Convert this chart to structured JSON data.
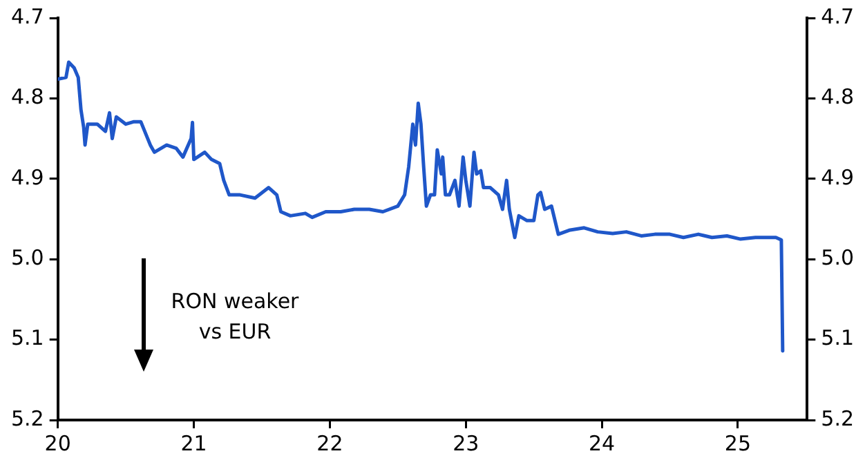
{
  "chart_data": {
    "type": "line",
    "x": [
      20.0,
      20.06,
      20.08,
      20.12,
      20.15,
      20.17,
      20.19,
      20.2,
      20.22,
      20.29,
      20.35,
      20.38,
      20.4,
      20.43,
      20.5,
      20.56,
      20.61,
      20.68,
      20.71,
      20.8,
      20.87,
      20.92,
      20.98,
      20.99,
      21.0,
      21.08,
      21.13,
      21.19,
      21.22,
      21.26,
      21.34,
      21.45,
      21.55,
      21.61,
      21.64,
      21.71,
      21.82,
      21.87,
      21.97,
      22.08,
      22.18,
      22.29,
      22.39,
      22.5,
      22.55,
      22.58,
      22.61,
      22.63,
      22.65,
      22.67,
      22.69,
      22.71,
      22.74,
      22.77,
      22.79,
      22.82,
      22.83,
      22.85,
      22.88,
      22.92,
      22.95,
      22.98,
      23.0,
      23.03,
      23.06,
      23.08,
      23.11,
      23.13,
      23.18,
      23.24,
      23.27,
      23.3,
      23.32,
      23.36,
      23.39,
      23.45,
      23.5,
      23.53,
      23.55,
      23.58,
      23.63,
      23.68,
      23.76,
      23.87,
      23.97,
      24.08,
      24.18,
      24.29,
      24.39,
      24.5,
      24.6,
      24.71,
      24.81,
      24.92,
      25.02,
      25.13,
      25.28,
      25.32,
      25.33
    ],
    "series": [
      {
        "color": "#1f57c9",
        "values": [
          4.776,
          4.774,
          4.755,
          4.762,
          4.774,
          4.814,
          4.836,
          4.858,
          4.832,
          4.832,
          4.841,
          4.818,
          4.85,
          4.823,
          4.832,
          4.829,
          4.829,
          4.858,
          4.867,
          4.858,
          4.862,
          4.873,
          4.85,
          4.83,
          4.876,
          4.867,
          4.876,
          4.881,
          4.902,
          4.92,
          4.92,
          4.924,
          4.911,
          4.92,
          4.941,
          4.946,
          4.943,
          4.948,
          4.941,
          4.941,
          4.938,
          4.938,
          4.941,
          4.934,
          4.92,
          4.885,
          4.832,
          4.858,
          4.806,
          4.832,
          4.885,
          4.934,
          4.92,
          4.92,
          4.864,
          4.894,
          4.873,
          4.92,
          4.92,
          4.902,
          4.934,
          4.873,
          4.902,
          4.934,
          4.867,
          4.894,
          4.89,
          4.911,
          4.911,
          4.92,
          4.938,
          4.902,
          4.938,
          4.973,
          4.946,
          4.952,
          4.952,
          4.92,
          4.917,
          4.938,
          4.934,
          4.969,
          4.964,
          4.961,
          4.966,
          4.968,
          4.966,
          4.971,
          4.969,
          4.969,
          4.973,
          4.969,
          4.973,
          4.971,
          4.975,
          4.973,
          4.973,
          4.976,
          5.114
        ]
      }
    ],
    "xlim": [
      20,
      25.51
    ],
    "xticks": [
      20,
      21,
      22,
      23,
      24,
      25
    ],
    "ylim": [
      5.2,
      4.7
    ],
    "yticks": [
      4.7,
      4.8,
      4.9,
      {
        "value": 5,
        "label": "5.0"
      },
      5.1,
      5.2
    ],
    "y2lim": [
      5.2,
      4.7
    ],
    "y2ticks": [
      4.7,
      4.8,
      4.9,
      {
        "value": 5,
        "label": "5.0"
      },
      5.1,
      5.2
    ],
    "annotations": [
      "RON weaker vs EUR"
    ],
    "grid": false,
    "legend": false,
    "marker": "none",
    "line_style": "solid"
  }
}
